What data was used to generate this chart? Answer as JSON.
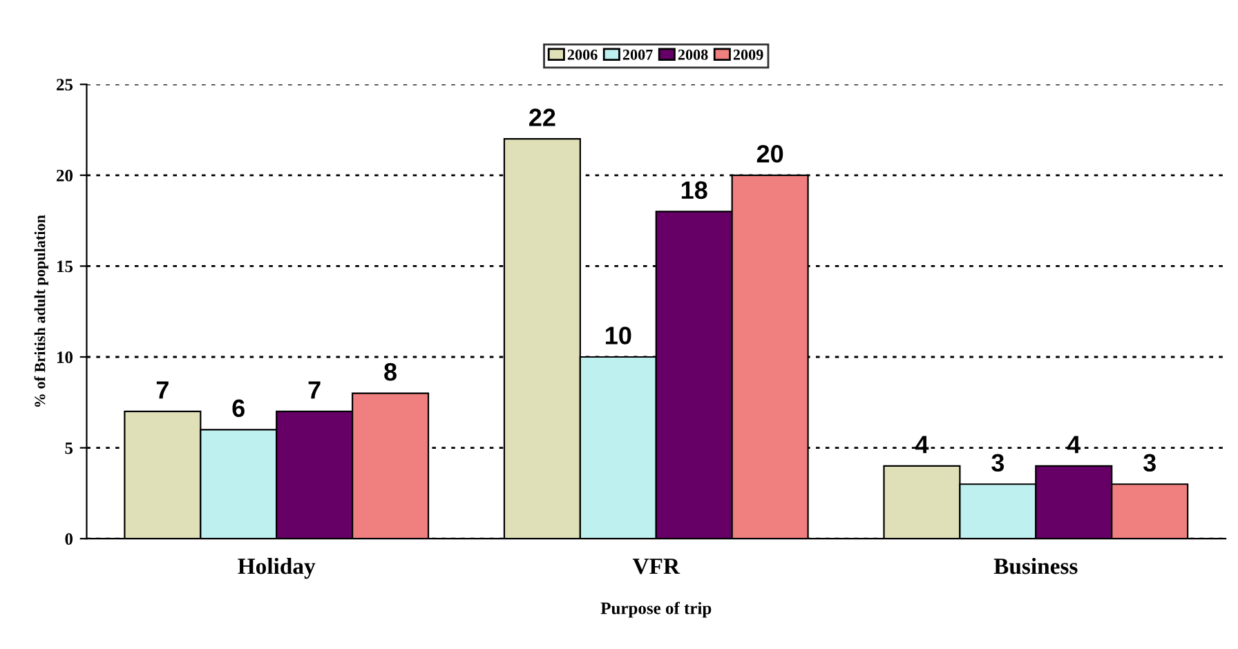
{
  "chart_data": {
    "type": "bar",
    "xlabel": "Purpose of trip",
    "ylabel": "% of British adult population",
    "categories": [
      "Holiday",
      "VFR",
      "Business"
    ],
    "series": [
      {
        "name": "2006",
        "color": "#e0e0b8",
        "values": [
          7,
          22,
          4
        ]
      },
      {
        "name": "2007",
        "color": "#bff0f0",
        "values": [
          6,
          10,
          3
        ]
      },
      {
        "name": "2008",
        "color": "#660066",
        "values": [
          7,
          18,
          4
        ]
      },
      {
        "name": "2009",
        "color": "#f08080",
        "values": [
          8,
          20,
          3
        ]
      }
    ],
    "ylim": [
      0,
      25
    ],
    "yticks": [
      0,
      5,
      10,
      15,
      20,
      25
    ],
    "grid": "y",
    "legend": "top",
    "data_labels": true
  }
}
